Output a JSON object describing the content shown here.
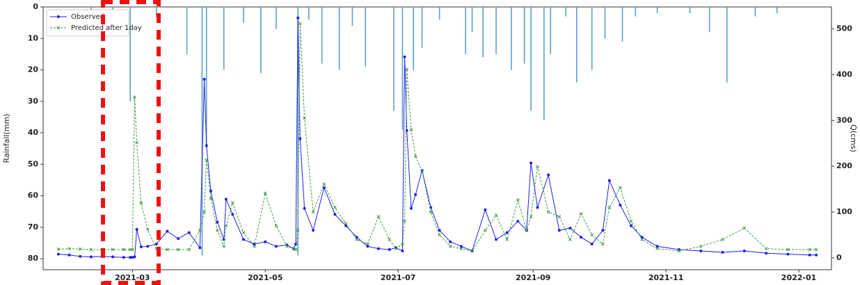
{
  "chart_data": {
    "type": "line",
    "y_label": "Rainfall(mm)",
    "y2_label": "Q(cms)",
    "x": [
      25,
      30,
      35,
      40,
      45,
      50,
      55,
      58,
      59,
      60,
      61,
      63,
      66,
      70,
      75,
      80,
      85,
      90,
      92,
      93,
      95,
      98,
      101,
      102,
      105,
      110,
      115,
      120,
      125,
      130,
      133,
      134,
      135,
      136,
      138,
      142,
      147,
      152,
      157,
      162,
      167,
      172,
      177,
      180,
      183,
      184,
      185,
      187,
      189,
      192,
      196,
      200,
      205,
      210,
      215,
      221,
      226,
      231,
      236,
      240,
      242,
      245,
      250,
      255,
      260,
      265,
      270,
      275,
      278,
      283,
      288,
      293,
      300,
      310,
      320,
      330,
      340,
      350,
      360,
      370,
      373
    ],
    "series": [
      {
        "name": "Observed",
        "color": "#1f1fe8",
        "axis": "y2",
        "marker": "o",
        "values": [
          8,
          6,
          3,
          2,
          3,
          2,
          1,
          1,
          1,
          2,
          62,
          24,
          25,
          30,
          58,
          42,
          55,
          22,
          390,
          245,
          146,
          78,
          40,
          128,
          95,
          40,
          30,
          35,
          25,
          28,
          20,
          30,
          524,
          260,
          108,
          60,
          153,
          95,
          70,
          45,
          25,
          20,
          18,
          22,
          15,
          439,
          278,
          108,
          138,
          191,
          110,
          60,
          35,
          25,
          15,
          105,
          40,
          55,
          80,
          60,
          207,
          110,
          181,
          60,
          65,
          45,
          30,
          60,
          169,
          115,
          70,
          45,
          25,
          18,
          15,
          12,
          15,
          10,
          8,
          6,
          6
        ]
      },
      {
        "name": "Predicted after 1day",
        "color": "#3a9a3a",
        "axis": "y2",
        "marker": "x",
        "dashed": true,
        "values": [
          19,
          20,
          19,
          18,
          18,
          18,
          18,
          18,
          18,
          351,
          252,
          120,
          62,
          20,
          18,
          18,
          18,
          60,
          100,
          214,
          130,
          60,
          25,
          70,
          120,
          55,
          25,
          141,
          70,
          25,
          20,
          18,
          60,
          512,
          305,
          100,
          161,
          110,
          75,
          40,
          30,
          90,
          40,
          20,
          30,
          80,
          412,
          280,
          222,
          190,
          100,
          50,
          25,
          20,
          15,
          60,
          93,
          40,
          126,
          60,
          90,
          199,
          100,
          90,
          40,
          96,
          50,
          30,
          110,
          153,
          80,
          40,
          20,
          15,
          25,
          40,
          65,
          20,
          18,
          18,
          18
        ]
      }
    ],
    "bars": {
      "color": "#5b9ec9",
      "x": [
        40,
        50,
        58,
        70,
        84,
        91,
        93,
        101,
        110,
        118,
        125,
        135,
        140,
        146,
        154,
        160,
        166,
        179,
        183,
        188,
        192,
        200,
        212,
        215,
        220,
        226,
        233,
        239,
        242,
        248,
        251,
        258,
        263,
        270,
        276,
        284,
        290,
        300,
        315,
        324,
        332,
        345,
        355
      ],
      "values": [
        2,
        1,
        30,
        3,
        15,
        79,
        45,
        20,
        5,
        21,
        7,
        79,
        4,
        18,
        20,
        6,
        19,
        33,
        39,
        20,
        13,
        4,
        15,
        8,
        16,
        15,
        20,
        18,
        33,
        36,
        15,
        3,
        24,
        20,
        10,
        11,
        3,
        2,
        2,
        8,
        24,
        3,
        2
      ]
    },
    "xlim": [
      18,
      380
    ],
    "xticks": [
      {
        "value": 59,
        "label": "2021-03"
      },
      {
        "value": 120,
        "label": "2021-05"
      },
      {
        "value": 181,
        "label": "2021-07"
      },
      {
        "value": 243,
        "label": "2021-09"
      },
      {
        "value": 304,
        "label": "2021-11"
      },
      {
        "value": 365,
        "label": "2022-01"
      }
    ],
    "ylim": [
      0,
      83.5
    ],
    "y_inverted": true,
    "yticks": [
      0,
      10,
      20,
      30,
      40,
      50,
      60,
      70,
      80
    ],
    "y2lim": [
      -26,
      548
    ],
    "y2ticks": [
      0,
      100,
      200,
      300,
      400,
      500
    ],
    "legend": "upper left"
  }
}
